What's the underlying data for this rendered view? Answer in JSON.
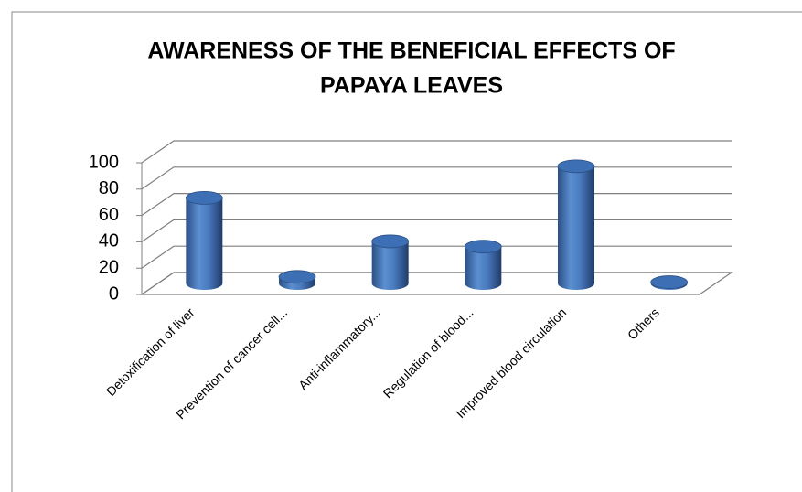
{
  "chart_data": {
    "type": "bar",
    "title": [
      "AWARENESS OF THE BENEFICIAL EFFECTS OF",
      "PAPAYA LEAVES"
    ],
    "categories": [
      "Detoxification of liver",
      "Prevention of cancer cell...",
      "Anti-inflammatory...",
      "Regulation of blood...",
      "Improved blood circulation",
      "Others"
    ],
    "values": [
      65,
      5,
      32,
      28,
      89,
      1
    ],
    "color": "#4f81bd",
    "ylim": [
      0,
      100
    ],
    "yticks": [
      0,
      20,
      40,
      60,
      80,
      100
    ],
    "grid": true
  }
}
